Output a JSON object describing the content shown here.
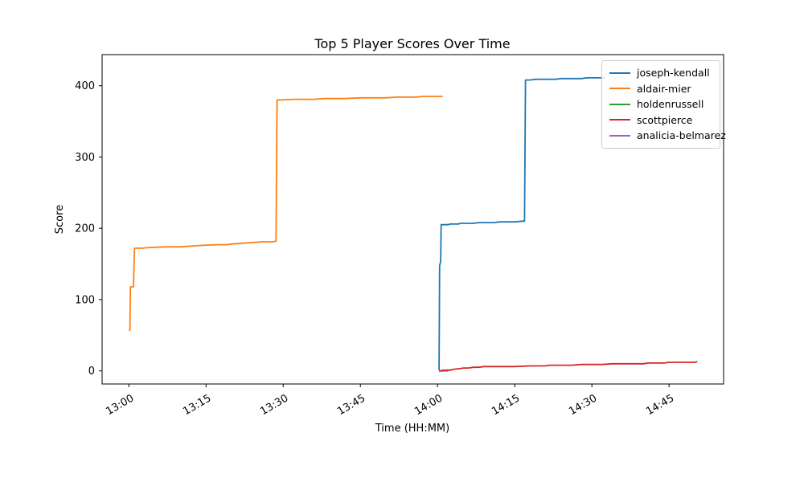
{
  "figure": {
    "title": "Top 5 Player Scores Over Time",
    "xlabel": "Time (HH:MM)",
    "ylabel": "Score"
  },
  "legend": {
    "position": "upper right",
    "entries": [
      {
        "label": "joseph-kendall",
        "color": "#1f77b4"
      },
      {
        "label": "aldair-mier",
        "color": "#ff7f0e"
      },
      {
        "label": "holdenrussell",
        "color": "#2ca02c"
      },
      {
        "label": "scottpierce",
        "color": "#d62728"
      },
      {
        "label": "analicia-belmarez",
        "color": "#9467bd"
      }
    ]
  },
  "chart_data": {
    "type": "line",
    "title": "Top 5 Player Scores Over Time",
    "xlabel": "Time (HH:MM)",
    "ylabel": "Score",
    "grid": false,
    "legend_position": "upper right",
    "x_axis": {
      "unit": "minutes after 13:00",
      "domain": [
        -5.2,
        115.6
      ],
      "tick_rotation_deg": 30,
      "ticks": [
        {
          "t": 0,
          "label": "13:00"
        },
        {
          "t": 15,
          "label": "13:15"
        },
        {
          "t": 30,
          "label": "13:30"
        },
        {
          "t": 45,
          "label": "13:45"
        },
        {
          "t": 60,
          "label": "14:00"
        },
        {
          "t": 75,
          "label": "14:15"
        },
        {
          "t": 90,
          "label": "14:30"
        },
        {
          "t": 105,
          "label": "14:45"
        }
      ]
    },
    "y_axis": {
      "domain": [
        -18.4,
        443.6
      ],
      "ticks": [
        0,
        100,
        200,
        300,
        400
      ]
    },
    "series": [
      {
        "name": "joseph-kendall",
        "color": "#1f77b4",
        "hidden": false,
        "points": [
          [
            60.3,
            1
          ],
          [
            60.4,
            148
          ],
          [
            60.5,
            150
          ],
          [
            60.6,
            154
          ],
          [
            60.7,
            205
          ],
          [
            62,
            205
          ],
          [
            62.5,
            206
          ],
          [
            64,
            206
          ],
          [
            64.5,
            207
          ],
          [
            67,
            207
          ],
          [
            68,
            208
          ],
          [
            71,
            208
          ],
          [
            72,
            209
          ],
          [
            75,
            209
          ],
          [
            76.5,
            210
          ],
          [
            76.9,
            210
          ],
          [
            77.1,
            408
          ],
          [
            78,
            408
          ],
          [
            79,
            409
          ],
          [
            83,
            409
          ],
          [
            84,
            410
          ],
          [
            88,
            410
          ],
          [
            89,
            411
          ],
          [
            92.5,
            411
          ]
        ]
      },
      {
        "name": "aldair-mier",
        "color": "#ff7f0e",
        "hidden": false,
        "points": [
          [
            0,
            57
          ],
          [
            0.2,
            57
          ],
          [
            0.3,
            118
          ],
          [
            0.9,
            118
          ],
          [
            1.1,
            172
          ],
          [
            2.5,
            172
          ],
          [
            4,
            173
          ],
          [
            7,
            174
          ],
          [
            10,
            174
          ],
          [
            12,
            175
          ],
          [
            14,
            176
          ],
          [
            17,
            177
          ],
          [
            19,
            177
          ],
          [
            20,
            178
          ],
          [
            22,
            179
          ],
          [
            24,
            180
          ],
          [
            26,
            181
          ],
          [
            28,
            181
          ],
          [
            28.6,
            182
          ],
          [
            28.8,
            380
          ],
          [
            30,
            380
          ],
          [
            32,
            381
          ],
          [
            36,
            381
          ],
          [
            38,
            382
          ],
          [
            42,
            382
          ],
          [
            45,
            383
          ],
          [
            50,
            383
          ],
          [
            52,
            384
          ],
          [
            56,
            384
          ],
          [
            57,
            385
          ],
          [
            61,
            385
          ]
        ]
      },
      {
        "name": "holdenrussell",
        "color": "#2ca02c",
        "hidden": true,
        "points": [
          [
            60.3,
            0
          ],
          [
            61,
            0
          ],
          [
            61.8,
            1
          ],
          [
            62.5,
            1
          ]
        ]
      },
      {
        "name": "scottpierce",
        "color": "#d62728",
        "hidden": false,
        "points": [
          [
            60.3,
            0
          ],
          [
            60.8,
            0
          ],
          [
            61,
            1
          ],
          [
            62.5,
            1
          ],
          [
            63,
            2
          ],
          [
            64,
            3
          ],
          [
            64.3,
            3
          ],
          [
            65,
            4
          ],
          [
            66,
            4
          ],
          [
            67,
            5
          ],
          [
            68,
            5
          ],
          [
            69,
            6
          ],
          [
            72,
            6
          ],
          [
            75,
            6
          ],
          [
            78,
            7
          ],
          [
            81,
            7
          ],
          [
            81.7,
            8
          ],
          [
            84,
            8
          ],
          [
            86,
            8
          ],
          [
            88,
            9
          ],
          [
            92,
            9
          ],
          [
            94,
            10
          ],
          [
            100,
            10
          ],
          [
            101,
            11
          ],
          [
            104,
            11
          ],
          [
            105,
            12
          ],
          [
            108,
            12
          ],
          [
            110,
            12
          ],
          [
            110.5,
            13
          ]
        ]
      },
      {
        "name": "analicia-belmarez",
        "color": "#9467bd",
        "hidden": true,
        "points": [
          [
            60.3,
            0
          ],
          [
            60.8,
            0
          ],
          [
            61.4,
            0
          ],
          [
            62,
            0
          ]
        ]
      }
    ],
    "draw_order": [
      "holdenrussell",
      "analicia-belmarez",
      "aldair-mier",
      "joseph-kendall",
      "scottpierce"
    ]
  }
}
